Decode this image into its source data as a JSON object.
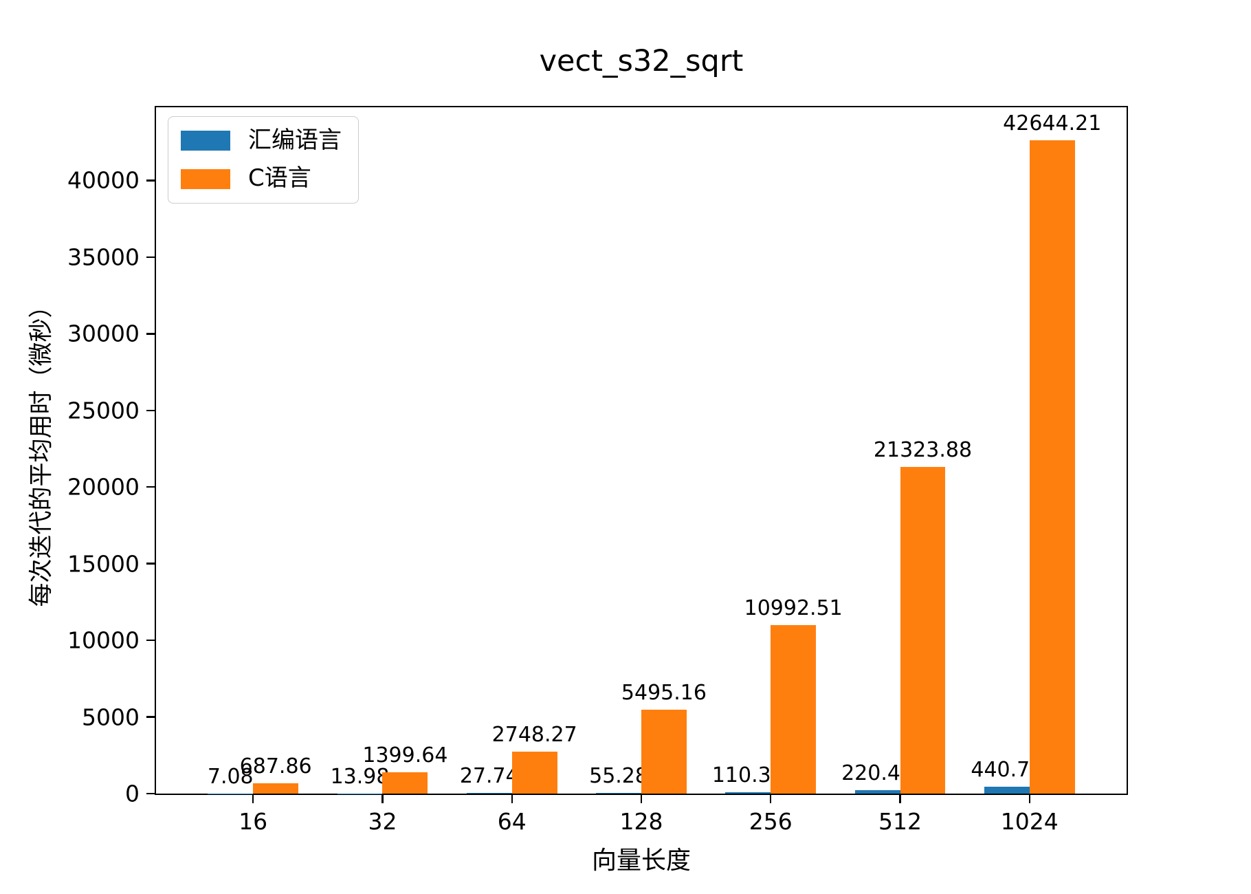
{
  "chart_data": {
    "type": "bar",
    "title": "vect_s32_sqrt",
    "xlabel": "向量长度",
    "ylabel": "每次迭代的平均用时（微秒）",
    "categories": [
      "16",
      "32",
      "64",
      "128",
      "256",
      "512",
      "1024"
    ],
    "series": [
      {
        "name": "汇编语言",
        "color": "#1f77b4",
        "values": [
          7.08,
          13.98,
          27.74,
          55.28,
          110.34,
          220.48,
          440.74
        ],
        "value_labels": [
          "7.08",
          "13.98",
          "27.74",
          "55.28",
          "110.34",
          "220.48",
          "440.74"
        ]
      },
      {
        "name": "C语言",
        "color": "#ff7f0e",
        "values": [
          687.86,
          1399.64,
          2748.27,
          5495.16,
          10992.51,
          21323.88,
          42644.21
        ],
        "value_labels": [
          "687.86",
          "1399.64",
          "2748.27",
          "5495.16",
          "10992.51",
          "21323.88",
          "42644.21"
        ]
      }
    ],
    "y_ticks": [
      0,
      5000,
      10000,
      15000,
      20000,
      25000,
      30000,
      35000,
      40000
    ],
    "y_tick_labels": [
      "0",
      "5000",
      "10000",
      "15000",
      "20000",
      "25000",
      "30000",
      "35000",
      "40000"
    ],
    "ylim": [
      0,
      44776
    ],
    "grid": false,
    "legend_position": "upper left",
    "bar_value_labels": true,
    "colors": {
      "background": "#ffffff",
      "axis": "#000000",
      "legend_border": "#cccccc"
    }
  }
}
